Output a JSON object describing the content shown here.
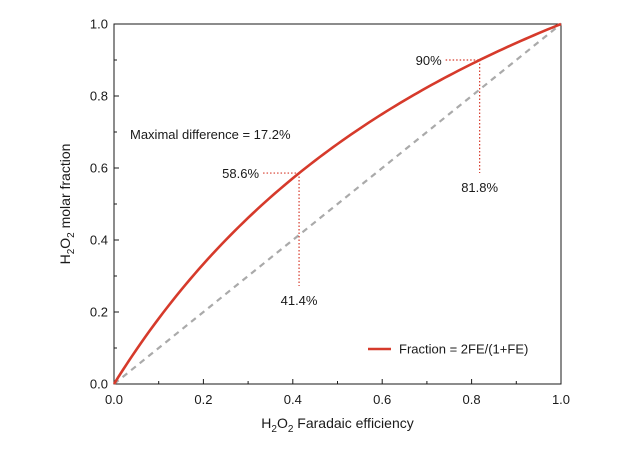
{
  "chart_data": {
    "type": "line",
    "title": "",
    "xlabel": {
      "main": "H",
      "sub": "2",
      "mid": "O",
      "sub2": "2",
      "rest": " Faradaic efficiency"
    },
    "ylabel": {
      "main": "H",
      "sub": "2",
      "mid": "O",
      "sub2": "2",
      "rest": " molar fraction"
    },
    "xlim": [
      0,
      1
    ],
    "ylim": [
      0,
      1
    ],
    "xticks": [
      0.0,
      0.2,
      0.4,
      0.6,
      0.8,
      1.0
    ],
    "yticks": [
      0.0,
      0.2,
      0.4,
      0.6,
      0.8,
      1.0
    ],
    "xtick_labels": [
      "0.0",
      "0.2",
      "0.4",
      "0.6",
      "0.8",
      "1.0"
    ],
    "ytick_labels": [
      "0.0",
      "0.2",
      "0.4",
      "0.6",
      "0.8",
      "1.0"
    ],
    "grid": false,
    "series": [
      {
        "name": "Fraction = 2FE/(1+FE)",
        "formula": "2x/(1+x)",
        "color": "#d63a2b",
        "style": "solid",
        "x": [
          0,
          0.05,
          0.1,
          0.15,
          0.2,
          0.25,
          0.3,
          0.35,
          0.4,
          0.45,
          0.5,
          0.55,
          0.6,
          0.65,
          0.7,
          0.75,
          0.8,
          0.85,
          0.9,
          0.95,
          1.0
        ],
        "y": [
          0,
          0.0952,
          0.1818,
          0.2609,
          0.3333,
          0.4,
          0.4615,
          0.5185,
          0.5714,
          0.6207,
          0.6667,
          0.7097,
          0.75,
          0.7879,
          0.8235,
          0.8571,
          0.8889,
          0.9189,
          0.9474,
          0.9744,
          1.0
        ]
      },
      {
        "name": "y = x",
        "color": "#aaaaaa",
        "style": "dashed",
        "x": [
          0,
          1
        ],
        "y": [
          0,
          1
        ]
      }
    ],
    "annotations": [
      {
        "text": "Maximal difference = 17.2%"
      },
      {
        "text": "58.6%",
        "point": [
          0.414,
          0.586
        ]
      },
      {
        "text": "41.4%",
        "point": [
          0.414,
          0.586
        ]
      },
      {
        "text": "90%",
        "point": [
          0.818,
          0.9
        ]
      },
      {
        "text": "81.8%",
        "point": [
          0.818,
          0.9
        ]
      }
    ],
    "legend": {
      "label": "Fraction = 2FE/(1+FE)",
      "position": "bottom-right"
    },
    "colors": {
      "curve": "#d63a2b",
      "diagonal": "#aaaaaa",
      "guide": "#d63a2b",
      "axis": "#1a1a1a"
    }
  }
}
